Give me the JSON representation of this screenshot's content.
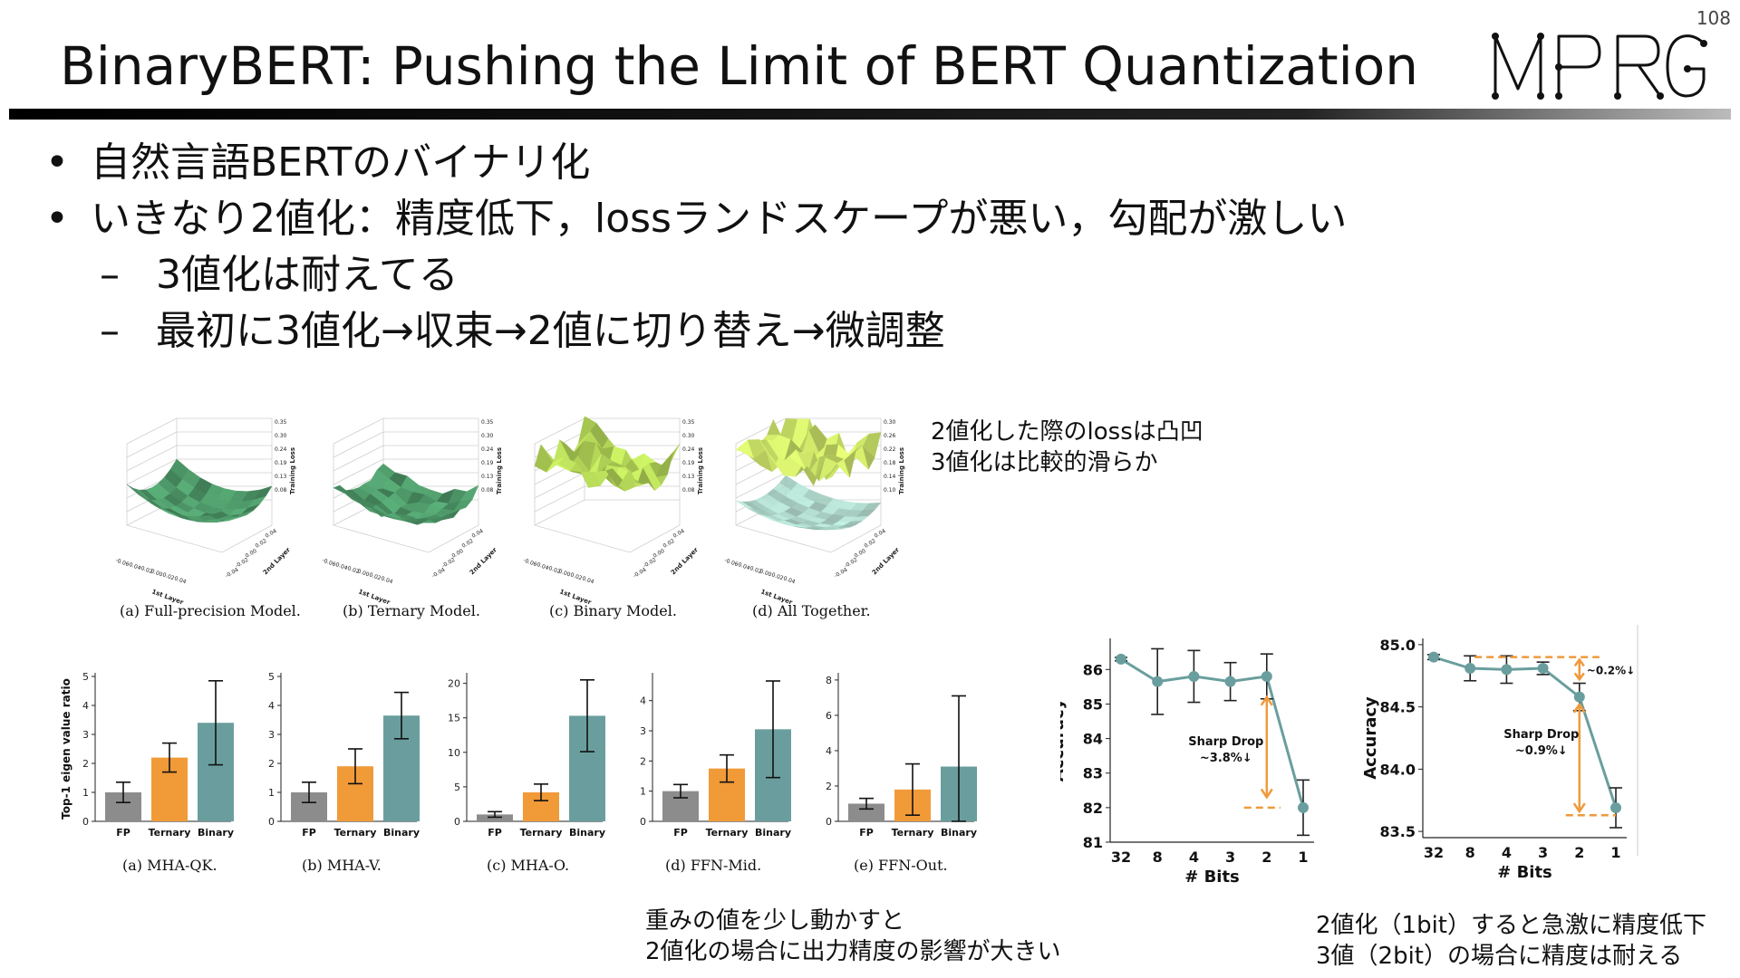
{
  "page": {
    "number": "108",
    "title": "BinaryBERT: Pushing the Limit of BERT Quantization",
    "logo_text": "MPRG"
  },
  "bullets": [
    {
      "marker": "•",
      "text": "自然言語BERTのバイナリ化"
    },
    {
      "marker": "•",
      "text": "いきなり2値化：精度低下，lossランドスケープが悪い，勾配が激しい"
    },
    {
      "marker": "–",
      "text": "3値化は耐えてる"
    },
    {
      "marker": "–",
      "text": "最初に3値化→収束→2値に切り替え→微調整"
    }
  ],
  "landscape": {
    "panels": [
      {
        "caption": "(a) Full-precision Model.",
        "zticks": [
          "0.35",
          "0.30",
          "0.24",
          "0.19",
          "0.13",
          "0.08"
        ]
      },
      {
        "caption": "(b) Ternary Model.",
        "zticks": [
          "0.35",
          "0.30",
          "0.24",
          "0.19",
          "0.13",
          "0.08"
        ]
      },
      {
        "caption": "(c) Binary Model.",
        "zticks": [
          "0.35",
          "0.30",
          "0.24",
          "0.19",
          "0.13",
          "0.08"
        ]
      },
      {
        "caption": "(d) All Together.",
        "zticks": [
          "0.30",
          "0.26",
          "0.22",
          "0.18",
          "0.14",
          "0.10"
        ]
      }
    ],
    "zlabel": "Training Loss",
    "xlabel": "1st Layer",
    "ylabel": "2nd Layer",
    "xticks": [
      "-0.06",
      "-0.04",
      "-0.02",
      "0.00",
      "0.02",
      "0.04"
    ],
    "yticks": [
      "-0.04",
      "-0.02",
      "0.00",
      "0.02",
      "0.04"
    ],
    "colors": {
      "surface": "#4f9a6a",
      "binary": "#c4dd60",
      "together_top": "#d6e870",
      "together_bottom": "#a9d6c9"
    }
  },
  "landscape_note": [
    "2値化した際のlossは凸凹",
    "3値化は比較的滑らか"
  ],
  "sensitivity_note": [
    "重みの値を少し動かすと",
    "2値化の場合に出力精度の影響が大きい"
  ],
  "accuracy_note": [
    "2値化（1bit）すると急激に精度低下",
    "3値（2bit）の場合に精度は耐える"
  ],
  "chart_data": [
    {
      "type": "bar",
      "caption": "(a) MHA-QK.",
      "ylabel": "Top-1 eigen value ratio",
      "categories": [
        "FP",
        "Ternary",
        "Binary"
      ],
      "values": [
        1.0,
        2.2,
        3.4
      ],
      "errors": [
        0.35,
        0.5,
        1.45
      ],
      "ylim": [
        0,
        5
      ],
      "yticks": [
        0,
        1,
        2,
        3,
        4,
        5
      ],
      "colors": [
        "#8c8c8c",
        "#f19a38",
        "#6a9e9e"
      ]
    },
    {
      "type": "bar",
      "caption": "(b) MHA-V.",
      "categories": [
        "FP",
        "Ternary",
        "Binary"
      ],
      "values": [
        1.0,
        1.9,
        3.65
      ],
      "errors": [
        0.35,
        0.6,
        0.8
      ],
      "ylim": [
        0,
        5
      ],
      "yticks": [
        0,
        1,
        2,
        3,
        4,
        5
      ],
      "colors": [
        "#8c8c8c",
        "#f19a38",
        "#6a9e9e"
      ]
    },
    {
      "type": "bar",
      "caption": "(c) MHA-O.",
      "categories": [
        "FP",
        "Ternary",
        "Binary"
      ],
      "values": [
        1.0,
        4.2,
        15.3
      ],
      "errors": [
        0.4,
        1.2,
        5.2
      ],
      "ylim": [
        0,
        21
      ],
      "yticks": [
        0,
        5,
        10,
        15,
        20
      ],
      "colors": [
        "#8c8c8c",
        "#f19a38",
        "#6a9e9e"
      ]
    },
    {
      "type": "bar",
      "caption": "(d) FFN-Mid.",
      "categories": [
        "FP",
        "Ternary",
        "Binary"
      ],
      "values": [
        1.0,
        1.75,
        3.05
      ],
      "errors": [
        0.22,
        0.45,
        1.6
      ],
      "ylim": [
        0,
        4.8
      ],
      "yticks": [
        0,
        1,
        2,
        3,
        4
      ],
      "colors": [
        "#8c8c8c",
        "#f19a38",
        "#6a9e9e"
      ]
    },
    {
      "type": "bar",
      "caption": "(e) FFN-Out.",
      "categories": [
        "FP",
        "Ternary",
        "Binary"
      ],
      "values": [
        1.0,
        1.8,
        3.1
      ],
      "errors": [
        0.3,
        1.45,
        4.0
      ],
      "ylim": [
        0,
        8.2
      ],
      "yticks": [
        0,
        2,
        4,
        6,
        8
      ],
      "colors": [
        "#8c8c8c",
        "#f19a38",
        "#6a9e9e"
      ]
    },
    {
      "type": "line",
      "xlabel": "# Bits",
      "ylabel": "Accuracy",
      "x": [
        "32",
        "8",
        "4",
        "3",
        "2",
        "1"
      ],
      "y": [
        86.3,
        85.65,
        85.8,
        85.65,
        85.8,
        82.0
      ],
      "errors": [
        0.05,
        0.95,
        0.75,
        0.55,
        0.65,
        0.8
      ],
      "ylim": [
        81,
        86.9
      ],
      "yticks": [
        81,
        82,
        83,
        84,
        85,
        86
      ],
      "annotation": {
        "text": "Sharp Drop",
        "value": "~3.8%↓"
      },
      "line_color": "#6a9e9e",
      "accent": "#ef9a3c"
    },
    {
      "type": "line",
      "xlabel": "# Bits",
      "ylabel": "Accuracy",
      "x": [
        "32",
        "8",
        "4",
        "3",
        "2",
        "1"
      ],
      "y": [
        84.9,
        84.81,
        84.8,
        84.81,
        84.58,
        83.69
      ],
      "errors": [
        0.02,
        0.1,
        0.11,
        0.05,
        0.11,
        0.16
      ],
      "ylim": [
        83.45,
        85.05
      ],
      "yticks": [
        83.5,
        84.0,
        84.5,
        85.0
      ],
      "annotations": [
        {
          "text": "~0.2%↓"
        },
        {
          "text": "Sharp Drop",
          "value": "~0.9%↓"
        }
      ],
      "line_color": "#6a9e9e",
      "accent": "#ef9a3c"
    }
  ]
}
